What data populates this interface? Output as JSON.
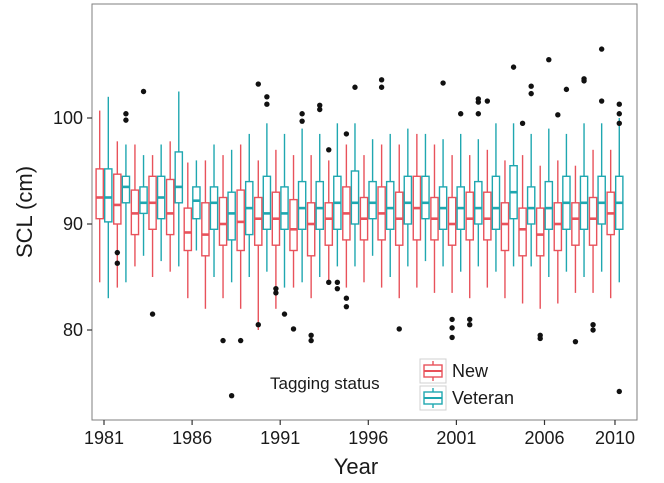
{
  "chart_data": {
    "type": "boxplot",
    "xlabel": "Year",
    "ylabel": "SCL (cm)",
    "x_range": [
      1981,
      2010
    ],
    "ylim": [
      71,
      108
    ],
    "x_ticks": [
      1981,
      1986,
      1991,
      1996,
      2001,
      2006,
      2010
    ],
    "y_ticks": [
      80,
      90,
      100
    ],
    "grid": false,
    "legend": {
      "title": "Tagging status",
      "placement": "bottom-center",
      "entries": [
        {
          "name": "New",
          "color": "#e8525b"
        },
        {
          "name": "Veteran",
          "color": "#1fa7b0"
        }
      ]
    },
    "series": [
      {
        "name": "New",
        "color": "#e8525b",
        "boxes": [
          {
            "year": 1981,
            "low": 84.5,
            "q1": 90.5,
            "median": 92.5,
            "q3": 95.2,
            "high": 100.7,
            "outliers": []
          },
          {
            "year": 1982,
            "low": 84.0,
            "q1": 90.0,
            "median": 91.8,
            "q3": 94.7,
            "high": 97.8,
            "outliers": [
              87.3,
              86.3
            ]
          },
          {
            "year": 1983,
            "low": 86.0,
            "q1": 89.0,
            "median": 91.0,
            "q3": 93.2,
            "high": 97.5,
            "outliers": []
          },
          {
            "year": 1984,
            "low": 85.0,
            "q1": 89.5,
            "median": 92.0,
            "q3": 94.5,
            "high": 96.5,
            "outliers": [
              81.5
            ]
          },
          {
            "year": 1985,
            "low": 85.5,
            "q1": 89.0,
            "median": 91.0,
            "q3": 94.2,
            "high": 97.8,
            "outliers": []
          },
          {
            "year": 1986,
            "low": 83.0,
            "q1": 87.5,
            "median": 89.2,
            "q3": 91.5,
            "high": 95.8,
            "outliers": []
          },
          {
            "year": 1987,
            "low": 82.0,
            "q1": 87.0,
            "median": 89.0,
            "q3": 92.0,
            "high": 96.0,
            "outliers": []
          },
          {
            "year": 1988,
            "low": 83.0,
            "q1": 88.0,
            "median": 90.0,
            "q3": 92.5,
            "high": 96.5,
            "outliers": [
              79.0
            ]
          },
          {
            "year": 1989,
            "low": 82.0,
            "q1": 87.5,
            "median": 90.2,
            "q3": 93.2,
            "high": 97.5,
            "outliers": [
              79.0
            ]
          },
          {
            "year": 1990,
            "low": 80.0,
            "q1": 88.0,
            "median": 90.5,
            "q3": 92.5,
            "high": 96.0,
            "outliers": [
              103.2,
              80.5
            ]
          },
          {
            "year": 1991,
            "low": 82.0,
            "q1": 88.0,
            "median": 90.5,
            "q3": 93.0,
            "high": 97.0,
            "outliers": [
              83.5,
              83.9
            ]
          },
          {
            "year": 1992,
            "low": 84.0,
            "q1": 87.5,
            "median": 89.5,
            "q3": 92.3,
            "high": 96.5,
            "outliers": [
              80.1
            ]
          },
          {
            "year": 1993,
            "low": 83.0,
            "q1": 87.0,
            "median": 90.0,
            "q3": 92.0,
            "high": 96.5,
            "outliers": [
              79.5,
              79.0
            ]
          },
          {
            "year": 1994,
            "low": 84.5,
            "q1": 88.0,
            "median": 90.5,
            "q3": 92.0,
            "high": 96.0,
            "outliers": [
              97.0,
              84.5
            ]
          },
          {
            "year": 1995,
            "low": 84.0,
            "q1": 88.5,
            "median": 91.0,
            "q3": 93.5,
            "high": 97.5,
            "outliers": [
              98.5,
              83.0,
              82.2
            ]
          },
          {
            "year": 1996,
            "low": 84.5,
            "q1": 88.5,
            "median": 90.5,
            "q3": 92.5,
            "high": 96.5,
            "outliers": []
          },
          {
            "year": 1997,
            "low": 84.0,
            "q1": 88.5,
            "median": 91.0,
            "q3": 93.5,
            "high": 97.5,
            "outliers": [
              103.6,
              102.9
            ]
          },
          {
            "year": 1998,
            "low": 83.0,
            "q1": 88.0,
            "median": 90.5,
            "q3": 93.0,
            "high": 97.5,
            "outliers": [
              80.1
            ]
          },
          {
            "year": 1999,
            "low": 84.0,
            "q1": 88.5,
            "median": 91.5,
            "q3": 94.5,
            "high": 98.5,
            "outliers": []
          },
          {
            "year": 2000,
            "low": 83.5,
            "q1": 88.5,
            "median": 90.5,
            "q3": 92.5,
            "high": 97.5,
            "outliers": []
          },
          {
            "year": 2001,
            "low": 83.5,
            "q1": 88.0,
            "median": 90.0,
            "q3": 92.5,
            "high": 96.5,
            "outliers": [
              79.3,
              80.2,
              81.0
            ]
          },
          {
            "year": 2002,
            "low": 83.0,
            "q1": 88.5,
            "median": 90.5,
            "q3": 93.0,
            "high": 96.5,
            "outliers": [
              81.0,
              80.5
            ]
          },
          {
            "year": 2003,
            "low": 84.0,
            "q1": 88.5,
            "median": 90.5,
            "q3": 93.0,
            "high": 97.0,
            "outliers": [
              101.6
            ]
          },
          {
            "year": 2004,
            "low": 83.0,
            "q1": 87.5,
            "median": 90.0,
            "q3": 92.0,
            "high": 96.0,
            "outliers": []
          },
          {
            "year": 2005,
            "low": 82.5,
            "q1": 87.0,
            "median": 89.5,
            "q3": 91.5,
            "high": 96.5,
            "outliers": [
              99.5
            ]
          },
          {
            "year": 2006,
            "low": 82.0,
            "q1": 87.0,
            "median": 89.0,
            "q3": 91.5,
            "high": 95.5,
            "outliers": [
              79.5,
              79.2
            ]
          },
          {
            "year": 2007,
            "low": 82.5,
            "q1": 87.5,
            "median": 90.0,
            "q3": 92.0,
            "high": 96.0,
            "outliers": [
              100.3
            ]
          },
          {
            "year": 2008,
            "low": 83.5,
            "q1": 88.0,
            "median": 90.5,
            "q3": 92.0,
            "high": 95.5,
            "outliers": [
              78.9
            ]
          },
          {
            "year": 2009,
            "low": 83.5,
            "q1": 88.0,
            "median": 90.5,
            "q3": 92.5,
            "high": 97.0,
            "outliers": [
              80.5,
              80.0
            ]
          },
          {
            "year": 2010,
            "low": 83.0,
            "q1": 89.0,
            "median": 91.0,
            "q3": 93.0,
            "high": 97.0,
            "outliers": []
          }
        ]
      },
      {
        "name": "Veteran",
        "color": "#1fa7b0",
        "boxes": [
          {
            "year": 1981,
            "low": 83.0,
            "q1": 90.2,
            "median": 92.5,
            "q3": 95.2,
            "high": 102.0,
            "outliers": []
          },
          {
            "year": 1982,
            "low": 84.5,
            "q1": 92.0,
            "median": 93.5,
            "q3": 94.5,
            "high": 97.5,
            "outliers": [
              100.4,
              99.8
            ]
          },
          {
            "year": 1983,
            "low": 87.0,
            "q1": 91.0,
            "median": 92.0,
            "q3": 93.5,
            "high": 96.5,
            "outliers": [
              102.5
            ]
          },
          {
            "year": 1984,
            "low": 86.5,
            "q1": 90.5,
            "median": 92.5,
            "q3": 94.5,
            "high": 97.5,
            "outliers": []
          },
          {
            "year": 1985,
            "low": 86.0,
            "q1": 92.0,
            "median": 93.5,
            "q3": 96.8,
            "high": 102.5,
            "outliers": []
          },
          {
            "year": 1986,
            "low": 87.5,
            "q1": 90.5,
            "median": 92.2,
            "q3": 93.5,
            "high": 96.0,
            "outliers": []
          },
          {
            "year": 1987,
            "low": 85.0,
            "q1": 89.5,
            "median": 92.0,
            "q3": 93.5,
            "high": 97.5,
            "outliers": []
          },
          {
            "year": 1988,
            "low": 84.5,
            "q1": 88.5,
            "median": 91.0,
            "q3": 93.0,
            "high": 97.0,
            "outliers": [
              73.8
            ]
          },
          {
            "year": 1989,
            "low": 85.0,
            "q1": 89.0,
            "median": 91.5,
            "q3": 94.0,
            "high": 98.5,
            "outliers": []
          },
          {
            "year": 1990,
            "low": 85.5,
            "q1": 89.5,
            "median": 91.0,
            "q3": 94.5,
            "high": 99.5,
            "outliers": [
              102.0,
              101.3
            ]
          },
          {
            "year": 1991,
            "low": 84.0,
            "q1": 89.5,
            "median": 91.0,
            "q3": 93.5,
            "high": 98.5,
            "outliers": [
              81.5
            ]
          },
          {
            "year": 1992,
            "low": 84.5,
            "q1": 89.5,
            "median": 91.5,
            "q3": 94.0,
            "high": 99.0,
            "outliers": [
              100.4,
              99.7
            ]
          },
          {
            "year": 1993,
            "low": 85.0,
            "q1": 89.5,
            "median": 91.5,
            "q3": 94.0,
            "high": 98.5,
            "outliers": [
              101.2,
              100.8
            ]
          },
          {
            "year": 1994,
            "low": 86.0,
            "q1": 89.5,
            "median": 92.0,
            "q3": 94.5,
            "high": 99.5,
            "outliers": [
              84.5,
              83.9
            ]
          },
          {
            "year": 1995,
            "low": 86.0,
            "q1": 90.0,
            "median": 92.0,
            "q3": 95.0,
            "high": 99.5,
            "outliers": [
              102.9
            ]
          },
          {
            "year": 1996,
            "low": 87.0,
            "q1": 90.5,
            "median": 92.0,
            "q3": 94.0,
            "high": 98.0,
            "outliers": []
          },
          {
            "year": 1997,
            "low": 85.0,
            "q1": 89.5,
            "median": 91.5,
            "q3": 94.0,
            "high": 98.5,
            "outliers": []
          },
          {
            "year": 1998,
            "low": 86.0,
            "q1": 90.0,
            "median": 92.0,
            "q3": 94.5,
            "high": 99.0,
            "outliers": []
          },
          {
            "year": 1999,
            "low": 86.5,
            "q1": 90.5,
            "median": 92.0,
            "q3": 94.5,
            "high": 98.5,
            "outliers": []
          },
          {
            "year": 2000,
            "low": 86.0,
            "q1": 89.5,
            "median": 91.5,
            "q3": 93.5,
            "high": 98.0,
            "outliers": [
              103.3
            ]
          },
          {
            "year": 2001,
            "low": 85.5,
            "q1": 89.5,
            "median": 91.5,
            "q3": 93.5,
            "high": 98.5,
            "outliers": [
              100.4
            ]
          },
          {
            "year": 2002,
            "low": 86.0,
            "q1": 90.0,
            "median": 91.5,
            "q3": 94.0,
            "high": 98.0,
            "outliers": [
              101.8,
              101.5,
              100.4
            ]
          },
          {
            "year": 2003,
            "low": 85.5,
            "q1": 89.5,
            "median": 91.5,
            "q3": 94.5,
            "high": 99.5,
            "outliers": []
          },
          {
            "year": 2004,
            "low": 86.0,
            "q1": 90.5,
            "median": 93.0,
            "q3": 95.5,
            "high": 99.5,
            "outliers": [
              104.8
            ]
          },
          {
            "year": 2005,
            "low": 86.0,
            "q1": 90.0,
            "median": 91.5,
            "q3": 93.5,
            "high": 98.5,
            "outliers": [
              103.0,
              102.3
            ]
          },
          {
            "year": 2006,
            "low": 85.0,
            "q1": 89.5,
            "median": 91.5,
            "q3": 94.0,
            "high": 99.0,
            "outliers": [
              105.5
            ]
          },
          {
            "year": 2007,
            "low": 85.5,
            "q1": 89.5,
            "median": 92.0,
            "q3": 94.5,
            "high": 98.5,
            "outliers": [
              102.7
            ]
          },
          {
            "year": 2008,
            "low": 85.0,
            "q1": 89.5,
            "median": 92.0,
            "q3": 94.5,
            "high": 99.5,
            "outliers": [
              103.7,
              103.5
            ]
          },
          {
            "year": 2009,
            "low": 85.5,
            "q1": 90.0,
            "median": 92.0,
            "q3": 94.5,
            "high": 99.5,
            "outliers": [
              106.5,
              101.6
            ]
          },
          {
            "year": 2010,
            "low": 84.5,
            "q1": 89.5,
            "median": 92.0,
            "q3": 94.5,
            "high": 100.0,
            "outliers": [
              101.3,
              100.4,
              99.5,
              74.2
            ]
          }
        ]
      }
    ]
  }
}
